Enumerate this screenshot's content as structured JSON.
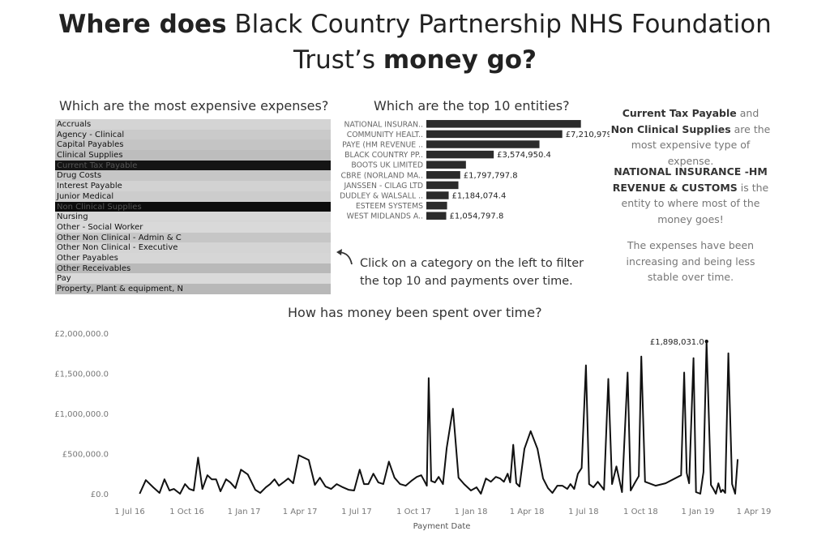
{
  "header": {
    "title_part1": "Where does",
    "title_part2": " Black Country Partnership NHS Foundation",
    "title_part3": "Trust’s ",
    "title_part4": "money go?"
  },
  "expenses_section": {
    "title": "Which are the most expensive expenses?",
    "items": [
      {
        "label": "Accruals",
        "shade": "#d4d4d4"
      },
      {
        "label": "Agency - Clinical",
        "shade": "#cacaca"
      },
      {
        "label": "Capital Payables",
        "shade": "#c4c4c4"
      },
      {
        "label": "Clinical Supplies",
        "shade": "#bdbdbd"
      },
      {
        "label": "Current Tax Payable",
        "shade": "#141414"
      },
      {
        "label": "Drug Costs",
        "shade": "#c6c6c6"
      },
      {
        "label": "Interest Payable",
        "shade": "#d2d2d2"
      },
      {
        "label": "Junior Medical",
        "shade": "#cccccc"
      },
      {
        "label": "Non Clinical Supplies",
        "shade": "#0c0c0c"
      },
      {
        "label": "Nursing",
        "shade": "#d6d6d6"
      },
      {
        "label": "Other  - Social Worker",
        "shade": "#d9d9d9"
      },
      {
        "label": "Other Non Clinical - Admin & C",
        "shade": "#c6c6c6"
      },
      {
        "label": "Other Non Clinical - Executive",
        "shade": "#d4d4d4"
      },
      {
        "label": "Other Payables",
        "shade": "#d6d6d6"
      },
      {
        "label": "Other Receivables",
        "shade": "#b9b9b9"
      },
      {
        "label": "Pay",
        "shade": "#dadada"
      },
      {
        "label": "Property, Plant & equipment, N",
        "shade": "#b8b8b8"
      }
    ]
  },
  "top10_section": {
    "title": "Which are the top 10 entities?"
  },
  "side_text": {
    "p1_b1": "Current Tax Payable",
    "p1_t1": " and ",
    "p1_b2": "Non Clinical Supplies",
    "p1_t2": " are the most expensive type of expense.",
    "p2_b1": "NATIONAL INSURANCE -HM REVENUE & CUSTOMS",
    "p2_t1": "  is the entity to where most of the money goes!",
    "p3": "The expenses have been increasing and being less stable over time."
  },
  "hint": {
    "line1": "Click on a category on the left to filter",
    "line2": "the top 10 and payments over time."
  },
  "timeline_section": {
    "title": "How has money been spent over time?"
  },
  "colors": {
    "bar": "#2b2b2b",
    "line": "#111111",
    "axis_text": "#777777"
  },
  "chart_data": [
    {
      "type": "bar",
      "orientation": "horizontal",
      "categories": [
        "NATIONAL INSURAN..",
        "COMMUNITY HEALT..",
        "PAYE (HM REVENUE ..",
        "BLACK COUNTRY PP..",
        "BOOTS UK LIMITED",
        "CBRE (NORLAND MA..",
        "JANSSEN - CILAG LTD",
        "DUDLEY & WALSALL ..",
        "ESTEEM SYSTEMS",
        "WEST MIDLANDS A.."
      ],
      "values": [
        8200000,
        7210979.8,
        6000000,
        3574950.4,
        2100000,
        1797797.8,
        1700000,
        1184074.4,
        1100000,
        1054797.8
      ],
      "data_labels": [
        "",
        "£7,210,979.8",
        "",
        "£3,574,950.4",
        "",
        "£1,797,797.8",
        "",
        "£1,184,074.4",
        "",
        "£1,054,797.8"
      ],
      "xlim": [
        0,
        8600000
      ]
    },
    {
      "type": "line",
      "xlabel": "Payment Date",
      "x_ticks": [
        "1 Jul 16",
        "1 Oct 16",
        "1 Jan 17",
        "1 Apr 17",
        "1 Jul 17",
        "1 Oct 17",
        "1 Jan 18",
        "1 Apr 18",
        "1 Jul 18",
        "1 Oct 18",
        "1 Jan 19",
        "1 Apr 19"
      ],
      "y_ticks": [
        "£0.0",
        "£500,000.0",
        "£1,000,000.0",
        "£1,500,000.0",
        "£2,000,000.0"
      ],
      "y_tick_values": [
        0,
        500000,
        1000000,
        1500000,
        2000000
      ],
      "ylim": [
        0,
        2000000
      ],
      "xlim": [
        "2016-07-01",
        "2019-04-01"
      ],
      "annotation": {
        "text": "£1,898,031.0",
        "x": "2019-01-15",
        "y": 1898031
      },
      "points": [
        [
          "2016-07-17",
          0
        ],
        [
          "2016-07-27",
          170000
        ],
        [
          "2016-08-08",
          80000
        ],
        [
          "2016-08-18",
          10000
        ],
        [
          "2016-08-26",
          180000
        ],
        [
          "2016-09-03",
          40000
        ],
        [
          "2016-09-10",
          60000
        ],
        [
          "2016-09-20",
          0
        ],
        [
          "2016-09-28",
          120000
        ],
        [
          "2016-10-05",
          60000
        ],
        [
          "2016-10-12",
          40000
        ],
        [
          "2016-10-19",
          450000
        ],
        [
          "2016-10-26",
          60000
        ],
        [
          "2016-11-03",
          230000
        ],
        [
          "2016-11-10",
          180000
        ],
        [
          "2016-11-17",
          180000
        ],
        [
          "2016-11-24",
          30000
        ],
        [
          "2016-12-03",
          180000
        ],
        [
          "2016-12-10",
          140000
        ],
        [
          "2016-12-18",
          70000
        ],
        [
          "2016-12-27",
          300000
        ],
        [
          "2017-01-07",
          240000
        ],
        [
          "2017-01-19",
          50000
        ],
        [
          "2017-01-27",
          10000
        ],
        [
          "2017-02-05",
          80000
        ],
        [
          "2017-02-12",
          120000
        ],
        [
          "2017-02-19",
          180000
        ],
        [
          "2017-02-26",
          100000
        ],
        [
          "2017-03-05",
          140000
        ],
        [
          "2017-03-13",
          190000
        ],
        [
          "2017-03-21",
          130000
        ],
        [
          "2017-03-30",
          480000
        ],
        [
          "2017-04-15",
          420000
        ],
        [
          "2017-04-25",
          110000
        ],
        [
          "2017-05-03",
          200000
        ],
        [
          "2017-05-12",
          90000
        ],
        [
          "2017-05-21",
          60000
        ],
        [
          "2017-05-30",
          120000
        ],
        [
          "2017-06-09",
          80000
        ],
        [
          "2017-06-18",
          50000
        ],
        [
          "2017-06-27",
          40000
        ],
        [
          "2017-07-06",
          300000
        ],
        [
          "2017-07-13",
          120000
        ],
        [
          "2017-07-20",
          120000
        ],
        [
          "2017-07-28",
          250000
        ],
        [
          "2017-08-05",
          140000
        ],
        [
          "2017-08-13",
          120000
        ],
        [
          "2017-08-22",
          400000
        ],
        [
          "2017-08-31",
          200000
        ],
        [
          "2017-09-09",
          120000
        ],
        [
          "2017-09-18",
          100000
        ],
        [
          "2017-09-27",
          160000
        ],
        [
          "2017-10-06",
          210000
        ],
        [
          "2017-10-13",
          230000
        ],
        [
          "2017-10-18",
          160000
        ],
        [
          "2017-10-22",
          100000
        ],
        [
          "2017-10-25",
          1440000
        ],
        [
          "2017-10-29",
          160000
        ],
        [
          "2017-11-04",
          140000
        ],
        [
          "2017-11-10",
          210000
        ],
        [
          "2017-11-17",
          120000
        ],
        [
          "2017-11-23",
          570000
        ],
        [
          "2017-12-03",
          1060000
        ],
        [
          "2017-12-12",
          200000
        ],
        [
          "2017-12-21",
          120000
        ],
        [
          "2018-01-01",
          40000
        ],
        [
          "2018-01-10",
          80000
        ],
        [
          "2018-01-17",
          0
        ],
        [
          "2018-01-25",
          190000
        ],
        [
          "2018-02-02",
          150000
        ],
        [
          "2018-02-10",
          210000
        ],
        [
          "2018-02-17",
          190000
        ],
        [
          "2018-02-23",
          150000
        ],
        [
          "2018-03-01",
          250000
        ],
        [
          "2018-03-05",
          140000
        ],
        [
          "2018-03-10",
          610000
        ],
        [
          "2018-03-15",
          130000
        ],
        [
          "2018-03-20",
          90000
        ],
        [
          "2018-03-28",
          560000
        ],
        [
          "2018-04-07",
          780000
        ],
        [
          "2018-04-18",
          560000
        ],
        [
          "2018-04-27",
          190000
        ],
        [
          "2018-05-05",
          70000
        ],
        [
          "2018-05-12",
          10000
        ],
        [
          "2018-05-20",
          100000
        ],
        [
          "2018-05-28",
          100000
        ],
        [
          "2018-06-05",
          60000
        ],
        [
          "2018-06-10",
          120000
        ],
        [
          "2018-06-16",
          60000
        ],
        [
          "2018-06-22",
          250000
        ],
        [
          "2018-06-28",
          320000
        ],
        [
          "2018-07-05",
          1600000
        ],
        [
          "2018-07-10",
          120000
        ],
        [
          "2018-07-17",
          80000
        ],
        [
          "2018-07-24",
          150000
        ],
        [
          "2018-08-03",
          50000
        ],
        [
          "2018-08-10",
          1430000
        ],
        [
          "2018-08-16",
          120000
        ],
        [
          "2018-08-23",
          340000
        ],
        [
          "2018-09-01",
          20000
        ],
        [
          "2018-09-10",
          1510000
        ],
        [
          "2018-09-15",
          40000
        ],
        [
          "2018-09-22",
          140000
        ],
        [
          "2018-09-28",
          220000
        ],
        [
          "2018-10-02",
          1710000
        ],
        [
          "2018-10-08",
          150000
        ],
        [
          "2018-10-25",
          100000
        ],
        [
          "2018-11-10",
          130000
        ],
        [
          "2018-12-05",
          230000
        ],
        [
          "2018-12-10",
          1510000
        ],
        [
          "2018-12-14",
          260000
        ],
        [
          "2018-12-18",
          130000
        ],
        [
          "2018-12-25",
          1690000
        ],
        [
          "2018-12-29",
          20000
        ],
        [
          "2019-01-05",
          0
        ],
        [
          "2019-01-10",
          270000
        ],
        [
          "2019-01-15",
          1898031
        ],
        [
          "2019-01-22",
          110000
        ],
        [
          "2019-01-26",
          60000
        ],
        [
          "2019-01-30",
          0
        ],
        [
          "2019-02-03",
          130000
        ],
        [
          "2019-02-07",
          20000
        ],
        [
          "2019-02-10",
          50000
        ],
        [
          "2019-02-14",
          10000
        ],
        [
          "2019-02-19",
          1750000
        ],
        [
          "2019-02-25",
          120000
        ],
        [
          "2019-03-02",
          0
        ],
        [
          "2019-03-06",
          430000
        ]
      ]
    }
  ]
}
